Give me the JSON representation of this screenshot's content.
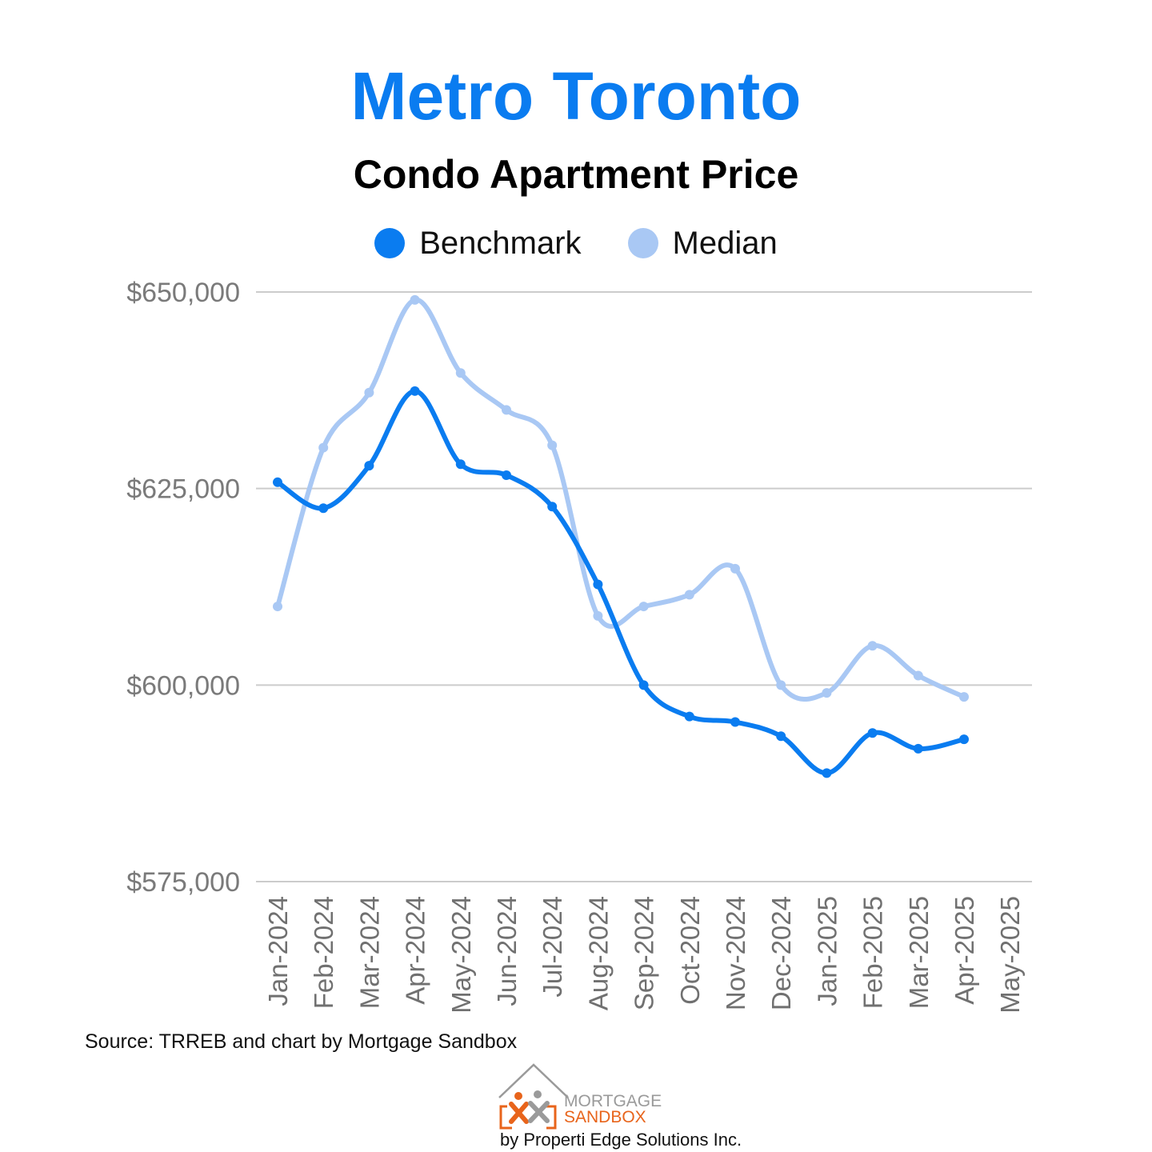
{
  "chart_data": {
    "type": "line",
    "title": "Metro Toronto",
    "subtitle": "Condo Apartment Price",
    "categories": [
      "Jan-2024",
      "Feb-2024",
      "Mar-2024",
      "Apr-2024",
      "May-2024",
      "Jun-2024",
      "Jul-2024",
      "Aug-2024",
      "Sep-2024",
      "Oct-2024",
      "Nov-2024",
      "Dec-2024",
      "Jan-2025",
      "Feb-2025",
      "Mar-2025",
      "Apr-2025",
      "May-2025"
    ],
    "series": [
      {
        "name": "Benchmark",
        "color": "#0a7cf0",
        "values": [
          625800,
          622500,
          627900,
          637400,
          628100,
          626700,
          622700,
          612800,
          600000,
          596000,
          595300,
          593500,
          588800,
          593900,
          591900,
          593100,
          null
        ]
      },
      {
        "name": "Median",
        "color": "#a9c8f4",
        "values": [
          610000,
          630200,
          637200,
          649000,
          639700,
          635000,
          630500,
          608800,
          610000,
          611500,
          614800,
          600000,
          599000,
          605000,
          601200,
          598500,
          null
        ]
      }
    ],
    "ylim": [
      575000,
      650000
    ],
    "yticks": [
      575000,
      600000,
      625000,
      650000
    ],
    "ytick_labels": [
      "$575,000",
      "$600,000",
      "$625,000",
      "$650,000"
    ],
    "grid": true,
    "legend_position": "top-center",
    "xlabel": "",
    "ylabel": ""
  },
  "source_text": "Source: TRREB and chart by Mortgage Sandbox",
  "logo": {
    "line1": "MORTGAGE",
    "line2": "SANDBOX",
    "tagline": "by Properti Edge Solutions Inc.",
    "colors": {
      "orange": "#e8641b",
      "gray": "#9a9a9a"
    }
  }
}
